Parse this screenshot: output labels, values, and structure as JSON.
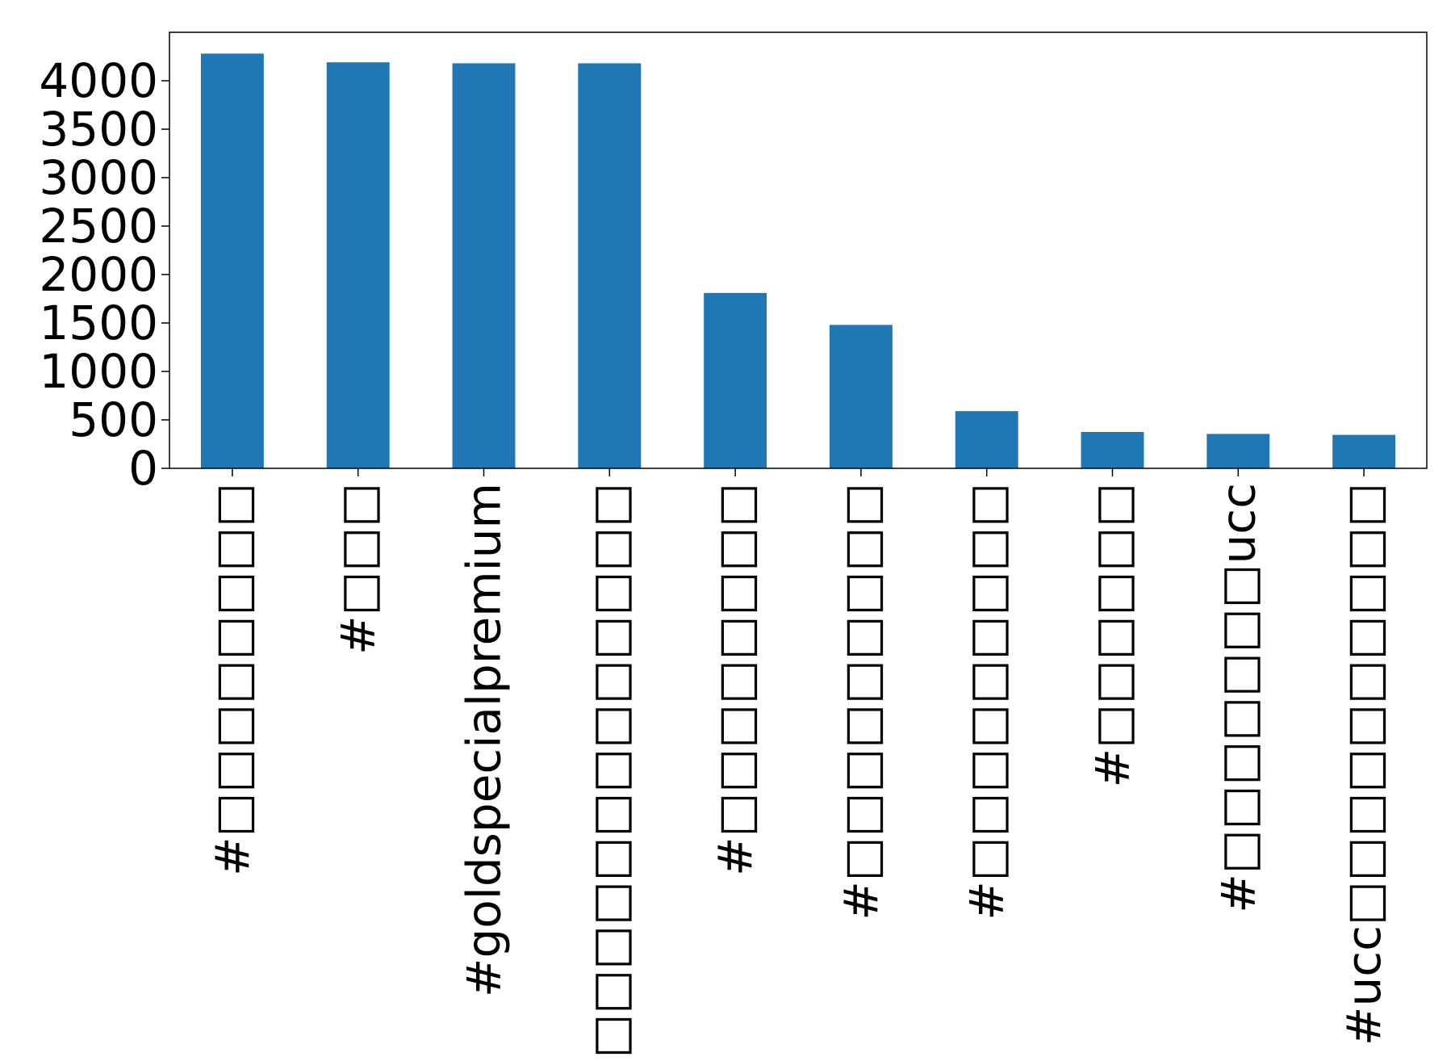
{
  "chart_data": {
    "type": "bar",
    "categories": [
      "#□□□□□□□□",
      "#□□□",
      "#goldspecialpremium",
      "#□□□□□□□□□□□□□",
      "#□□□□□□□□",
      "#□□□□□□□□□",
      "#□□□□□□□□□",
      "#□□□□□□",
      "#□□□□□□□ucc",
      "#ucc□□□□□□□□□□"
    ],
    "values": [
      4280,
      4190,
      4180,
      4180,
      1810,
      1480,
      590,
      375,
      355,
      345
    ],
    "color": "#1f77b4",
    "ylim": [
      0,
      4500
    ],
    "yticks": [
      0,
      500,
      1000,
      1500,
      2000,
      2500,
      3000,
      3500,
      4000
    ],
    "title": "",
    "xlabel": "",
    "ylabel": "",
    "grid": false,
    "legend": "none"
  }
}
